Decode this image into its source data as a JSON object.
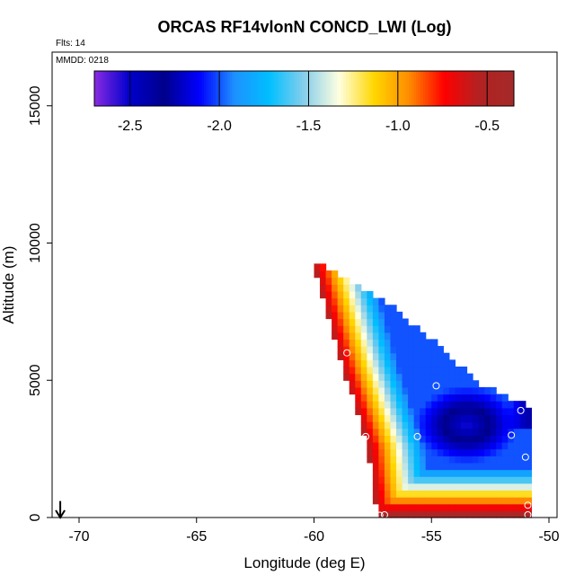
{
  "chart_data": {
    "type": "heatmap",
    "title": "ORCAS RF14vlonN CONCD_LWI (Log)",
    "flights_label": "Flts: 14",
    "date_label": "MMDD: 0218",
    "xlabel": "Longitude (deg E)",
    "ylabel": "Altitude (m)",
    "xlim": [
      -71,
      -50
    ],
    "ylim": [
      0,
      16500
    ],
    "xticks": [
      -70,
      -65,
      -60,
      -55,
      -50
    ],
    "xtick_labels": [
      "-70",
      "-65",
      "-60",
      "-55",
      "-50"
    ],
    "yticks": [
      0,
      5000,
      10000,
      15000
    ],
    "ytick_labels": [
      "0",
      "5000",
      "10000",
      "15000"
    ],
    "colorbar": {
      "range": [
        -2.7,
        -0.35
      ],
      "ticks": [
        -2.5,
        -2.0,
        -1.5,
        -1.0,
        -0.5
      ],
      "tick_labels": [
        "-2.5",
        "-2.0",
        "-1.5",
        "-1.0",
        "-0.5"
      ],
      "colors": [
        "#8a2be2",
        "#0000cd",
        "#00008b",
        "#0000ff",
        "#1e90ff",
        "#00bfff",
        "#87ceeb",
        "#ffffe0",
        "#ffd700",
        "#ff8c00",
        "#ff0000",
        "#b22222",
        "#a52a2a"
      ]
    },
    "field": {
      "lon_step": 0.25,
      "alt_step": 250,
      "top_edge": [
        [
          -60.0,
          9200
        ],
        [
          -57.0,
          7800
        ],
        [
          -54.8,
          6200
        ],
        [
          -53.0,
          4800
        ],
        [
          -51.0,
          4000
        ]
      ],
      "left_edge": [
        [
          -60.0,
          9200
        ],
        [
          -58.8,
          5500
        ],
        [
          -57.7,
          2600
        ],
        [
          -57.3,
          0
        ]
      ],
      "lon_max": -50.9,
      "dark_band_alt": 200,
      "core_point": [
        -53.5,
        3400
      ]
    },
    "sample_points": [
      [
        -58.6,
        6000
      ],
      [
        -54.8,
        4800
      ],
      [
        -51.2,
        3900
      ],
      [
        -51.6,
        3000
      ],
      [
        -55.6,
        2950
      ],
      [
        -57.8,
        2950
      ],
      [
        -51.0,
        2200
      ],
      [
        -50.9,
        450
      ],
      [
        -57.0,
        100
      ],
      [
        -57.2,
        80
      ],
      [
        -57.4,
        60
      ],
      [
        -50.9,
        100
      ]
    ],
    "arrow": {
      "lon": -70.8,
      "from_alt": 600,
      "to_alt": 0
    }
  }
}
